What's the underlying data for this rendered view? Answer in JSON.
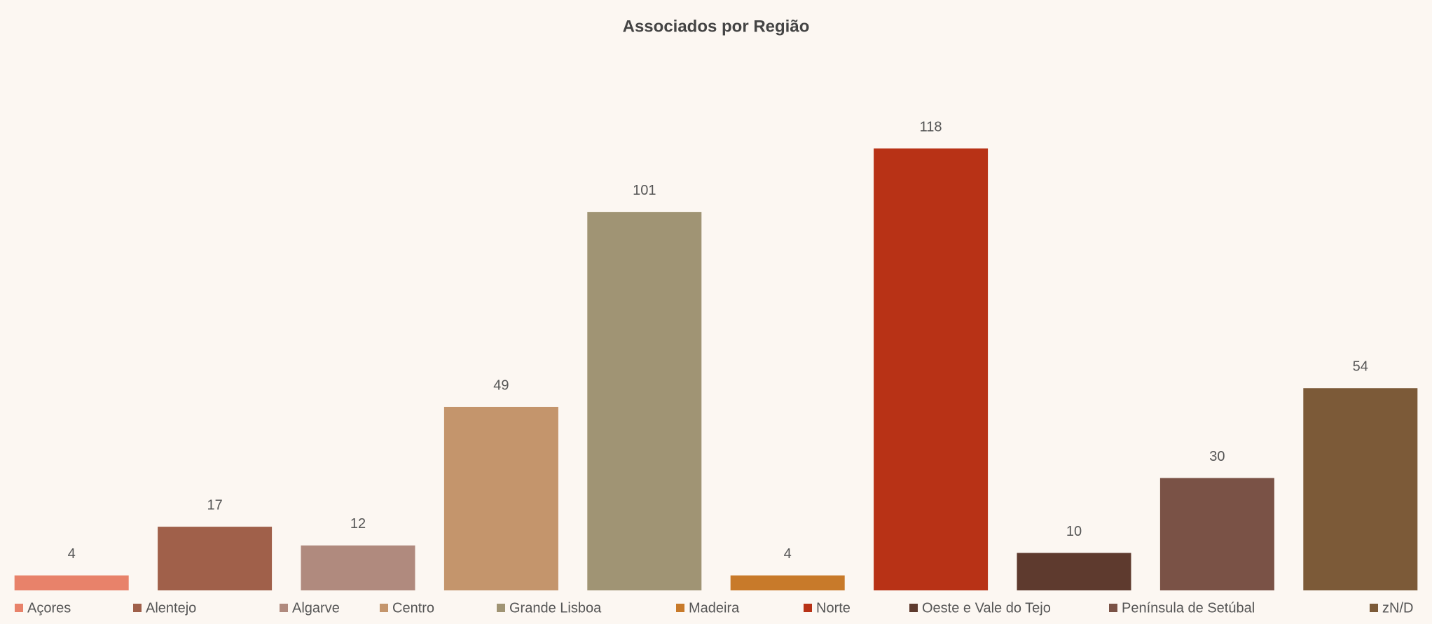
{
  "chart_data": {
    "type": "bar",
    "title": "Associados por Região",
    "categories": [
      "Açores",
      "Alentejo",
      "Algarve",
      "Centro",
      "Grande Lisboa",
      "Madeira",
      "Norte",
      "Oeste e Vale do Tejo",
      "Península de Setúbal",
      "zN/D"
    ],
    "values": [
      4,
      17,
      12,
      49,
      101,
      4,
      118,
      10,
      30,
      54
    ],
    "colors": [
      "#e8826a",
      "#a0604a",
      "#b08a7e",
      "#c4956c",
      "#a09474",
      "#c87a2a",
      "#b83216",
      "#5e3a2e",
      "#7a5246",
      "#7c5a38"
    ],
    "legend": "bottom"
  }
}
